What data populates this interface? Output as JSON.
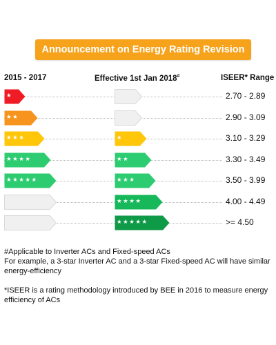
{
  "banner": {
    "title": "Announcement on Energy Rating Revision"
  },
  "headers": {
    "left": "2015 - 2017",
    "middle": "Effective 1st Jan 2018",
    "middle_mark": "#",
    "right": "ISEER* Range"
  },
  "colors": {
    "banner": "#f7a21b",
    "empty": "#f0f0f0",
    "red": "#ef1c25",
    "orange": "#f7941d",
    "yellow": "#ffc60a",
    "green_light": "#2ecc71",
    "green_mid": "#16b85a",
    "green_dark": "#0f9a47"
  },
  "rows": [
    {
      "range": "2.70 - 2.89",
      "old": {
        "stars": 1,
        "color": "#ef1c25"
      },
      "new": {
        "stars": 0,
        "color": "#f0f0f0"
      }
    },
    {
      "range": "2.90 - 3.09",
      "old": {
        "stars": 2,
        "color": "#f7941d"
      },
      "new": {
        "stars": 0,
        "color": "#f0f0f0"
      }
    },
    {
      "range": "3.10 - 3.29",
      "old": {
        "stars": 3,
        "color": "#ffc60a"
      },
      "new": {
        "stars": 1,
        "color": "#ffc60a"
      }
    },
    {
      "range": "3.30 - 3.49",
      "old": {
        "stars": 4,
        "color": "#2ecc71"
      },
      "new": {
        "stars": 2,
        "color": "#2ecc71"
      }
    },
    {
      "range": "3.50 - 3.99",
      "old": {
        "stars": 5,
        "color": "#2ecc71"
      },
      "new": {
        "stars": 3,
        "color": "#2ecc71"
      }
    },
    {
      "range": "4.00 - 4.49",
      "old": {
        "stars": 0,
        "color": "#f0f0f0"
      },
      "new": {
        "stars": 4,
        "color": "#16b85a"
      }
    },
    {
      "range": ">= 4.50",
      "old": {
        "stars": 0,
        "color": "#f0f0f0"
      },
      "new": {
        "stars": 5,
        "color": "#0f9a47"
      }
    }
  ],
  "notes": {
    "applicable": "#Applicable to Inverter ACs and Fixed-speed ACs",
    "example": "For example, a 3-star Inverter AC and a 3-star Fixed-speed AC will have similar energy-efficiency",
    "iseer": "*ISEER is a rating methodology introduced by BEE in 2016 to measure energy efficiency of ACs"
  }
}
